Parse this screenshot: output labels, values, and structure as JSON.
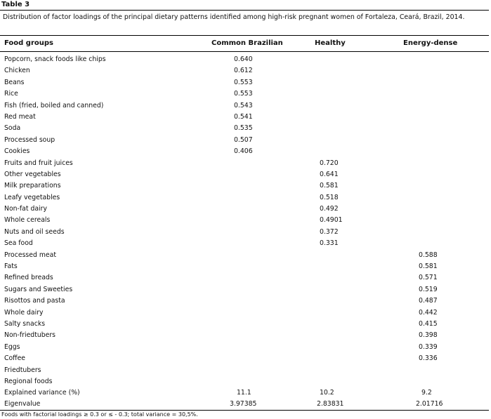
{
  "table_label": "Table 3",
  "caption": "Distribution of factor loadings of the principal dietary patterns identified among high-risk pregnant women of Fortaleza, Ceará, Brazil, 2014.",
  "headers": {
    "food_groups": "Food groups",
    "common_brazilian": "Common Brazilian",
    "healthy": "Healthy",
    "energy_dense": "Energy-dense"
  },
  "rows": [
    {
      "name": "Popcorn, snack foods like chips",
      "cb": "0.640",
      "h": "",
      "ed": ""
    },
    {
      "name": "Chicken",
      "cb": "0.612",
      "h": "",
      "ed": ""
    },
    {
      "name": "Beans",
      "cb": "0.553",
      "h": "",
      "ed": ""
    },
    {
      "name": "Rice",
      "cb": "0.553",
      "h": "",
      "ed": ""
    },
    {
      "name": "Fish (fried, boiled and canned)",
      "cb": "0.543",
      "h": "",
      "ed": ""
    },
    {
      "name": "Red meat",
      "cb": "0.541",
      "h": "",
      "ed": ""
    },
    {
      "name": "Soda",
      "cb": "0.535",
      "h": "",
      "ed": ""
    },
    {
      "name": "Processed soup",
      "cb": "0.507",
      "h": "",
      "ed": ""
    },
    {
      "name": "Cookies",
      "cb": "0.406",
      "h": "",
      "ed": ""
    },
    {
      "name": "Fruits and fruit juices",
      "cb": "",
      "h": "0.720",
      "ed": ""
    },
    {
      "name": "Other vegetables",
      "cb": "",
      "h": "0.641",
      "ed": ""
    },
    {
      "name": "Milk preparations",
      "cb": "",
      "h": "0.581",
      "ed": ""
    },
    {
      "name": "Leafy vegetables",
      "cb": "",
      "h": "0.518",
      "ed": ""
    },
    {
      "name": "Non-fat dairy",
      "cb": "",
      "h": "0.492",
      "ed": ""
    },
    {
      "name": "Whole cereals",
      "cb": "",
      "h": "0.4901",
      "ed": ""
    },
    {
      "name": "Nuts and oil seeds",
      "cb": "",
      "h": "0.372",
      "ed": ""
    },
    {
      "name": "Sea food",
      "cb": "",
      "h": "0.331",
      "ed": ""
    },
    {
      "name": "Processed meat",
      "cb": "",
      "h": "",
      "ed": "0.588"
    },
    {
      "name": "Fats",
      "cb": "",
      "h": "",
      "ed": "0.581"
    },
    {
      "name": "Refined breads",
      "cb": "",
      "h": "",
      "ed": "0.571"
    },
    {
      "name": "Sugars and Sweeties",
      "cb": "",
      "h": "",
      "ed": "0.519"
    },
    {
      "name": "Risottos and pasta",
      "cb": "",
      "h": "",
      "ed": "0.487"
    },
    {
      "name": "Whole dairy",
      "cb": "",
      "h": "",
      "ed": "0.442"
    },
    {
      "name": "Salty snacks",
      "cb": "",
      "h": "",
      "ed": "0.415"
    },
    {
      "name": "Non-friedtubers",
      "cb": "",
      "h": "",
      "ed": "0.398"
    },
    {
      "name": "Eggs",
      "cb": "",
      "h": "",
      "ed": "0.339"
    },
    {
      "name": "Coffee",
      "cb": "",
      "h": "",
      "ed": "0.336"
    },
    {
      "name": "Friedtubers",
      "cb": "",
      "h": "",
      "ed": ""
    },
    {
      "name": "Regional foods",
      "cb": "",
      "h": "",
      "ed": ""
    }
  ],
  "explained_variance": {
    "name": "Explained variance (%)",
    "cb": "11.1",
    "h": "10.2",
    "ed": "9.2"
  },
  "eigenvalue": {
    "name": "Eigenvalue",
    "cb": "3.97385",
    "h": "2.83831",
    "ed": "2.01716"
  },
  "footnote": "Foods with factorial loadings ≥ 0.3 or ≤ - 0.3; total variance = 30,5%."
}
